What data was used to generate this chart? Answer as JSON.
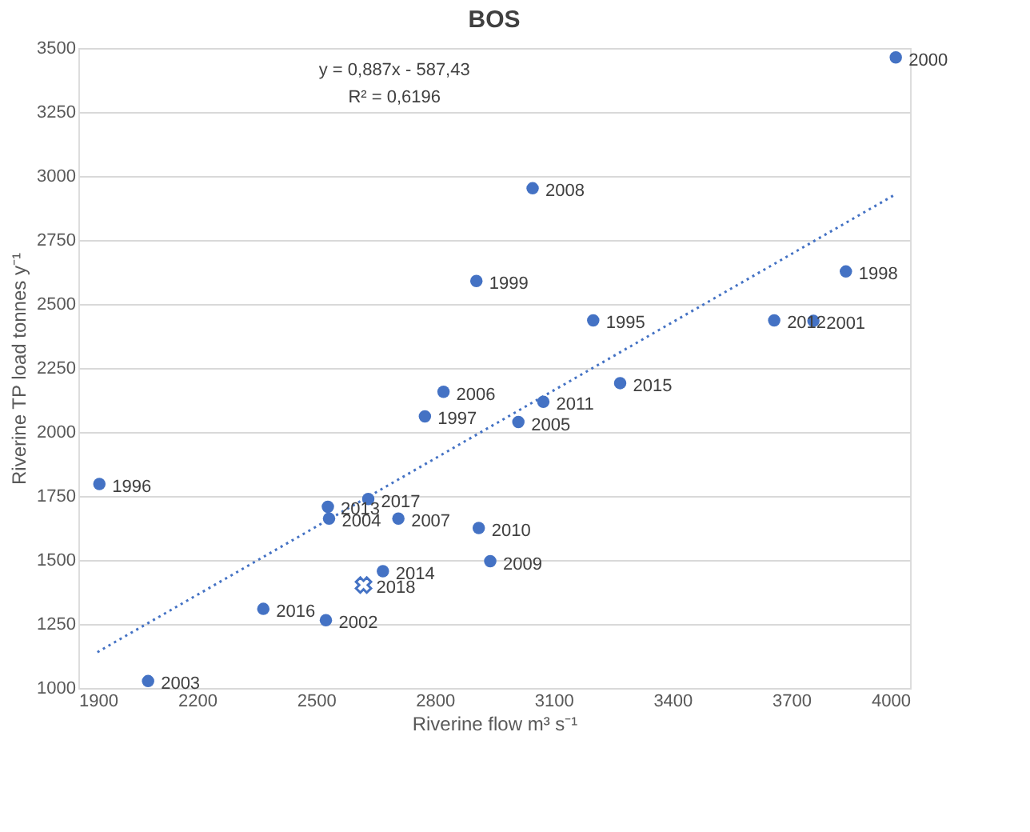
{
  "chart_data": {
    "type": "scatter",
    "title": "BOS",
    "xlabel": "Riverine flow m³ s⁻¹",
    "ylabel": "Riverine TP load tonnes y⁻¹",
    "xlim": [
      1900,
      4000
    ],
    "xticks": [
      1900,
      2200,
      2500,
      2800,
      3100,
      3400,
      3700,
      4000
    ],
    "ylim": [
      1000,
      3500
    ],
    "yticks": [
      1000,
      1250,
      1500,
      1750,
      2000,
      2250,
      2500,
      2750,
      3000,
      3250,
      3500
    ],
    "grid": "y",
    "legend": false,
    "series": [
      {
        "type": "scatter",
        "marker": "circle",
        "color": "#4472c4",
        "x": [
          3964,
          3047,
          2905,
          3200,
          3657,
          3756,
          3838,
          3268,
          2822,
          3074,
          2775,
          3011,
          1953,
          2530,
          2632,
          2533,
          2708,
          2911,
          2940,
          2669,
          2367,
          2525,
          2076
        ],
        "values": [
          3463,
          2952,
          2590,
          2436,
          2436,
          2434,
          2627,
          2191,
          2157,
          2118,
          2061,
          2039,
          1797,
          1708,
          1738,
          1662,
          1662,
          1625,
          1495,
          1456,
          1309,
          1265,
          1027
        ]
      },
      {
        "type": "scatter",
        "marker": "cross",
        "color": "#4472c4",
        "x": [
          2620
        ],
        "values": [
          1402
        ]
      },
      {
        "type": "line",
        "line_style": "dotted",
        "color": "#4472c4",
        "x": [
          1948,
          3964
        ],
        "values": [
          1140,
          2929
        ]
      }
    ],
    "annotations": [
      "y = 0,887x - 587,43",
      "R² = 0,6196",
      {
        "text": "2000",
        "x": 3964,
        "y": 3463
      },
      {
        "text": "2008",
        "x": 3047,
        "y": 2952
      },
      {
        "text": "1999",
        "x": 2905,
        "y": 2590
      },
      {
        "text": "1995",
        "x": 3200,
        "y": 2436
      },
      {
        "text": "2012",
        "x": 3657,
        "y": 2436
      },
      {
        "text": "2001",
        "x": 3756,
        "y": 2434
      },
      {
        "text": "1998",
        "x": 3838,
        "y": 2627
      },
      {
        "text": "2015",
        "x": 3268,
        "y": 2191
      },
      {
        "text": "2006",
        "x": 2822,
        "y": 2157
      },
      {
        "text": "2011",
        "x": 3074,
        "y": 2118
      },
      {
        "text": "1997",
        "x": 2775,
        "y": 2061
      },
      {
        "text": "2005",
        "x": 3011,
        "y": 2039
      },
      {
        "text": "1996",
        "x": 1953,
        "y": 1797
      },
      {
        "text": "2013",
        "x": 2530,
        "y": 1708
      },
      {
        "text": "2017",
        "x": 2632,
        "y": 1738
      },
      {
        "text": "2004",
        "x": 2533,
        "y": 1662
      },
      {
        "text": "2007",
        "x": 2708,
        "y": 1662
      },
      {
        "text": "2010",
        "x": 2911,
        "y": 1625
      },
      {
        "text": "2009",
        "x": 2940,
        "y": 1495
      },
      {
        "text": "2014",
        "x": 2669,
        "y": 1456
      },
      {
        "text": "2018",
        "x": 2620,
        "y": 1402
      },
      {
        "text": "2016",
        "x": 2367,
        "y": 1309
      },
      {
        "text": "2002",
        "x": 2525,
        "y": 1265
      },
      {
        "text": "2003",
        "x": 2076,
        "y": 1027
      }
    ]
  }
}
